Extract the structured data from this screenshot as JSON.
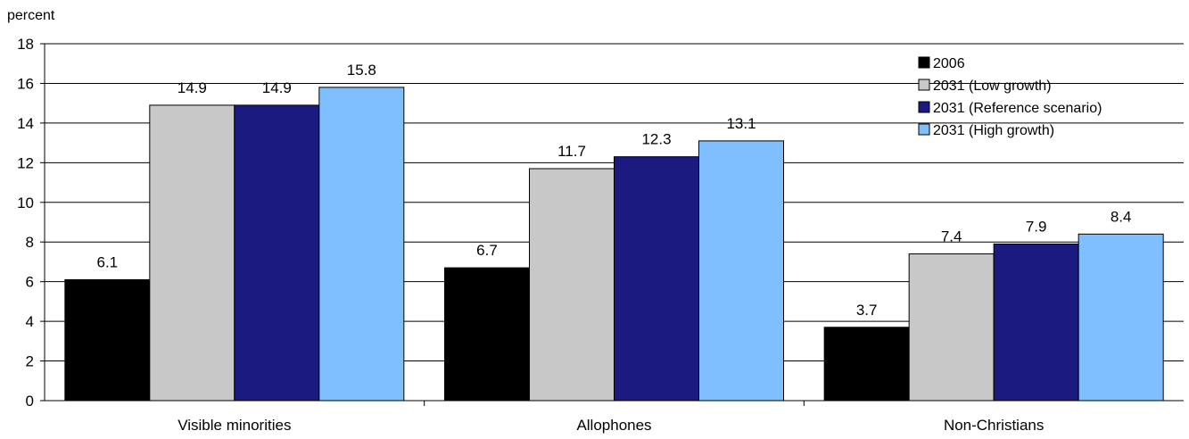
{
  "chart_data": {
    "type": "bar",
    "ylabel": "percent",
    "ylim": [
      0,
      18
    ],
    "yticks": [
      0,
      2,
      4,
      6,
      8,
      10,
      12,
      14,
      16,
      18
    ],
    "grid": true,
    "legend_position": "top-right",
    "categories": [
      "Visible minorities",
      "Allophones",
      "Non-Christians"
    ],
    "series": [
      {
        "name": "2006",
        "color": "#000000",
        "values": [
          6.1,
          6.7,
          3.7
        ]
      },
      {
        "name": "2031 (Low growth)",
        "color": "#c8c8c8",
        "values": [
          14.9,
          11.7,
          7.4
        ]
      },
      {
        "name": "2031 (Reference scenario)",
        "color": "#1a1a80",
        "values": [
          14.9,
          12.3,
          7.9
        ]
      },
      {
        "name": "2031 (High growth)",
        "color": "#80bfff",
        "values": [
          15.8,
          13.1,
          8.4
        ]
      }
    ]
  }
}
